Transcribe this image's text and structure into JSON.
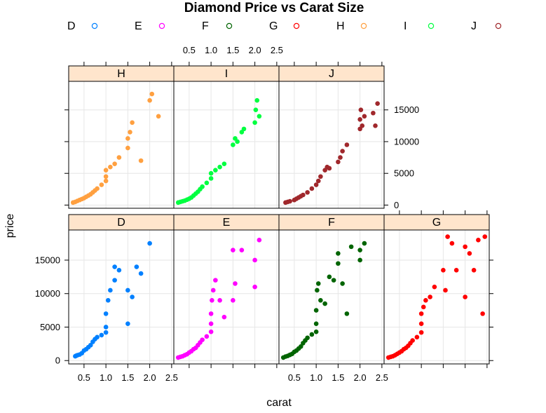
{
  "chart_data": {
    "type": "scatter",
    "title": "Diamond Price vs Carat Size",
    "xlabel": "carat",
    "ylabel": "price",
    "xlim": [
      0.15,
      2.55
    ],
    "ylim": [
      -500,
      19500
    ],
    "x_ticks": [
      0.5,
      1.0,
      1.5,
      2.0,
      2.5
    ],
    "x_tick_labels": [
      "0.5",
      "1.0",
      "1.5",
      "2.0",
      "2.5"
    ],
    "y_ticks": [
      0,
      5000,
      10000,
      15000
    ],
    "y_tick_labels": [
      "0",
      "5000",
      "10000",
      "15000"
    ],
    "grid": true,
    "legend_position": "top",
    "layout": {
      "columns": 4,
      "rows": 2
    },
    "strip_fill": "#ffe5cc",
    "series": [
      {
        "name": "D",
        "color": "#0080ff",
        "panel": "D",
        "points": [
          [
            0.3,
            650
          ],
          [
            0.32,
            720
          ],
          [
            0.35,
            800
          ],
          [
            0.4,
            900
          ],
          [
            0.45,
            1100
          ],
          [
            0.5,
            1500
          ],
          [
            0.55,
            1700
          ],
          [
            0.6,
            2000
          ],
          [
            0.65,
            2300
          ],
          [
            0.7,
            2800
          ],
          [
            0.75,
            3200
          ],
          [
            0.8,
            3500
          ],
          [
            0.9,
            3800
          ],
          [
            1.0,
            4200
          ],
          [
            1.0,
            5000
          ],
          [
            1.0,
            7000
          ],
          [
            1.05,
            9000
          ],
          [
            1.1,
            10500
          ],
          [
            1.2,
            12000
          ],
          [
            1.2,
            14000
          ],
          [
            1.3,
            13500
          ],
          [
            1.5,
            10500
          ],
          [
            1.5,
            5500
          ],
          [
            1.6,
            9500
          ],
          [
            1.7,
            14000
          ],
          [
            1.8,
            13000
          ],
          [
            2.0,
            17500
          ]
        ]
      },
      {
        "name": "E",
        "color": "#ff00ff",
        "panel": "E",
        "points": [
          [
            0.25,
            450
          ],
          [
            0.3,
            550
          ],
          [
            0.35,
            650
          ],
          [
            0.4,
            800
          ],
          [
            0.45,
            950
          ],
          [
            0.5,
            1200
          ],
          [
            0.55,
            1400
          ],
          [
            0.6,
            1700
          ],
          [
            0.65,
            1900
          ],
          [
            0.7,
            2300
          ],
          [
            0.75,
            2700
          ],
          [
            0.8,
            3100
          ],
          [
            0.9,
            3600
          ],
          [
            1.0,
            4300
          ],
          [
            1.0,
            5500
          ],
          [
            1.0,
            7000
          ],
          [
            1.02,
            9000
          ],
          [
            1.05,
            10500
          ],
          [
            1.1,
            12000
          ],
          [
            1.2,
            9000
          ],
          [
            1.3,
            6500
          ],
          [
            1.5,
            9000
          ],
          [
            1.5,
            16500
          ],
          [
            1.55,
            11500
          ],
          [
            1.7,
            16500
          ],
          [
            2.0,
            15000
          ],
          [
            2.0,
            11000
          ],
          [
            2.1,
            18000
          ]
        ]
      },
      {
        "name": "F",
        "color": "#006400",
        "panel": "F",
        "points": [
          [
            0.25,
            450
          ],
          [
            0.3,
            600
          ],
          [
            0.35,
            700
          ],
          [
            0.4,
            850
          ],
          [
            0.45,
            1000
          ],
          [
            0.5,
            1300
          ],
          [
            0.55,
            1500
          ],
          [
            0.6,
            1800
          ],
          [
            0.65,
            2100
          ],
          [
            0.7,
            2600
          ],
          [
            0.75,
            3000
          ],
          [
            0.8,
            3400
          ],
          [
            0.9,
            3900
          ],
          [
            1.0,
            4300
          ],
          [
            1.0,
            5500
          ],
          [
            1.0,
            7500
          ],
          [
            1.02,
            10500
          ],
          [
            1.05,
            11500
          ],
          [
            1.1,
            9000
          ],
          [
            1.2,
            8500
          ],
          [
            1.3,
            12500
          ],
          [
            1.4,
            12000
          ],
          [
            1.5,
            14500
          ],
          [
            1.5,
            16000
          ],
          [
            1.6,
            11500
          ],
          [
            1.7,
            7000
          ],
          [
            1.8,
            17000
          ],
          [
            2.0,
            16500
          ],
          [
            2.1,
            17500
          ],
          [
            2.0,
            15000
          ]
        ]
      },
      {
        "name": "G",
        "color": "#ff0000",
        "panel": "G",
        "points": [
          [
            0.25,
            450
          ],
          [
            0.3,
            550
          ],
          [
            0.35,
            650
          ],
          [
            0.4,
            800
          ],
          [
            0.45,
            1000
          ],
          [
            0.5,
            1200
          ],
          [
            0.55,
            1400
          ],
          [
            0.6,
            1700
          ],
          [
            0.65,
            1900
          ],
          [
            0.7,
            2200
          ],
          [
            0.75,
            2600
          ],
          [
            0.8,
            3000
          ],
          [
            0.9,
            3500
          ],
          [
            1.0,
            4200
          ],
          [
            1.0,
            5500
          ],
          [
            1.0,
            7000
          ],
          [
            1.05,
            8000
          ],
          [
            1.1,
            9000
          ],
          [
            1.2,
            9500
          ],
          [
            1.3,
            11000
          ],
          [
            1.5,
            13500
          ],
          [
            1.55,
            10500
          ],
          [
            1.6,
            18500
          ],
          [
            1.7,
            17500
          ],
          [
            1.8,
            13500
          ],
          [
            2.0,
            17000
          ],
          [
            2.0,
            9500
          ],
          [
            2.1,
            16000
          ],
          [
            2.2,
            13500
          ],
          [
            2.3,
            18000
          ],
          [
            2.4,
            7000
          ],
          [
            2.45,
            18500
          ]
        ]
      },
      {
        "name": "H",
        "color": "#ffa040",
        "panel": "H",
        "points": [
          [
            0.25,
            400
          ],
          [
            0.3,
            500
          ],
          [
            0.35,
            650
          ],
          [
            0.4,
            800
          ],
          [
            0.45,
            950
          ],
          [
            0.5,
            1100
          ],
          [
            0.55,
            1300
          ],
          [
            0.6,
            1500
          ],
          [
            0.65,
            1700
          ],
          [
            0.7,
            2000
          ],
          [
            0.75,
            2300
          ],
          [
            0.8,
            2600
          ],
          [
            0.9,
            3200
          ],
          [
            1.0,
            3800
          ],
          [
            1.0,
            4500
          ],
          [
            1.0,
            5500
          ],
          [
            1.1,
            6000
          ],
          [
            1.2,
            6500
          ],
          [
            1.3,
            7500
          ],
          [
            1.5,
            9000
          ],
          [
            1.5,
            10500
          ],
          [
            1.55,
            11500
          ],
          [
            1.6,
            13000
          ],
          [
            1.8,
            7000
          ],
          [
            2.0,
            16500
          ],
          [
            2.05,
            17500
          ],
          [
            2.2,
            14000
          ]
        ]
      },
      {
        "name": "I",
        "color": "#00ff40",
        "panel": "I",
        "points": [
          [
            0.25,
            400
          ],
          [
            0.3,
            500
          ],
          [
            0.35,
            600
          ],
          [
            0.4,
            700
          ],
          [
            0.45,
            850
          ],
          [
            0.5,
            1000
          ],
          [
            0.55,
            1200
          ],
          [
            0.6,
            1500
          ],
          [
            0.65,
            1800
          ],
          [
            0.7,
            2100
          ],
          [
            0.75,
            2500
          ],
          [
            0.8,
            2900
          ],
          [
            0.9,
            3500
          ],
          [
            1.0,
            4200
          ],
          [
            1.0,
            5000
          ],
          [
            1.1,
            5500
          ],
          [
            1.2,
            6000
          ],
          [
            1.3,
            6500
          ],
          [
            1.5,
            9500
          ],
          [
            1.55,
            10500
          ],
          [
            1.6,
            10000
          ],
          [
            1.7,
            11500
          ],
          [
            1.75,
            12000
          ],
          [
            2.0,
            13000
          ],
          [
            2.02,
            15000
          ],
          [
            2.05,
            16500
          ],
          [
            2.1,
            14000
          ]
        ]
      },
      {
        "name": "J",
        "color": "#a0282c",
        "panel": "J",
        "points": [
          [
            0.3,
            400
          ],
          [
            0.35,
            500
          ],
          [
            0.4,
            600
          ],
          [
            0.5,
            800
          ],
          [
            0.55,
            1000
          ],
          [
            0.6,
            1200
          ],
          [
            0.65,
            1400
          ],
          [
            0.7,
            1600
          ],
          [
            0.8,
            2000
          ],
          [
            0.9,
            2600
          ],
          [
            1.0,
            3200
          ],
          [
            1.05,
            3800
          ],
          [
            1.1,
            4500
          ],
          [
            1.2,
            5500
          ],
          [
            1.25,
            6000
          ],
          [
            1.3,
            5800
          ],
          [
            1.5,
            6800
          ],
          [
            1.55,
            7500
          ],
          [
            1.6,
            8500
          ],
          [
            1.7,
            9500
          ],
          [
            2.0,
            12000
          ],
          [
            2.0,
            13500
          ],
          [
            2.02,
            15000
          ],
          [
            2.05,
            12500
          ],
          [
            2.1,
            14000
          ],
          [
            2.3,
            14500
          ],
          [
            2.35,
            12500
          ],
          [
            2.4,
            16000
          ]
        ]
      }
    ]
  }
}
